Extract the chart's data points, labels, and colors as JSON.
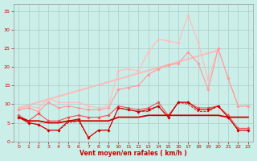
{
  "x": [
    0,
    1,
    2,
    3,
    4,
    5,
    6,
    7,
    8,
    9,
    10,
    11,
    12,
    13,
    14,
    15,
    16,
    17,
    18,
    19,
    20,
    21,
    22,
    23
  ],
  "raff_max": [
    8.5,
    9.5,
    9.0,
    11.5,
    10.5,
    10.5,
    10.5,
    9.5,
    9.0,
    9.5,
    19.0,
    19.5,
    19.0,
    24.0,
    27.5,
    27.0,
    26.5,
    34.0,
    26.5,
    16.5,
    25.0,
    17.0,
    9.5,
    9.5
  ],
  "raff_moy": [
    8.5,
    9.0,
    8.0,
    10.5,
    9.0,
    9.5,
    9.0,
    8.5,
    8.5,
    9.0,
    14.0,
    14.5,
    15.0,
    18.0,
    19.5,
    20.5,
    21.0,
    24.0,
    21.0,
    14.0,
    25.0,
    17.0,
    9.5,
    9.5
  ],
  "trend": [
    9.0,
    9.5,
    10.0,
    10.5,
    11.0,
    11.5,
    12.0,
    12.5,
    13.0,
    13.5,
    14.0,
    15.0,
    16.0,
    17.0,
    18.0,
    19.0,
    20.0,
    21.5,
    22.5,
    23.5,
    24.5,
    17.0,
    9.5,
    9.5
  ],
  "vent_max": [
    7.0,
    5.5,
    7.5,
    5.5,
    5.5,
    6.5,
    7.0,
    6.5,
    6.5,
    7.0,
    9.5,
    9.0,
    8.5,
    9.0,
    10.5,
    7.0,
    10.5,
    10.5,
    9.0,
    9.0,
    9.5,
    7.0,
    3.5,
    3.5
  ],
  "vent_moy": [
    6.5,
    5.0,
    4.5,
    3.0,
    3.0,
    5.5,
    6.0,
    1.0,
    3.0,
    3.0,
    9.0,
    8.5,
    8.0,
    8.5,
    9.5,
    6.5,
    10.5,
    10.5,
    8.5,
    8.5,
    9.5,
    6.5,
    3.0,
    3.0
  ],
  "vent_med": [
    6.5,
    5.5,
    5.5,
    5.0,
    5.0,
    5.5,
    5.5,
    5.5,
    5.5,
    5.5,
    6.5,
    6.5,
    6.5,
    7.0,
    7.0,
    7.0,
    7.0,
    7.0,
    7.0,
    7.0,
    7.0,
    6.5,
    6.5,
    6.5
  ],
  "vent_min": [
    6.5,
    5.0,
    4.5,
    3.0,
    3.0,
    5.0,
    5.5,
    1.0,
    3.0,
    3.0,
    9.0,
    8.5,
    8.0,
    8.0,
    9.5,
    6.5,
    10.5,
    10.0,
    8.0,
    8.0,
    9.5,
    6.5,
    3.0,
    3.0
  ],
  "trend_line": [
    9.0,
    24.5
  ],
  "trend_x": [
    0,
    20
  ],
  "bg_color": "#cceee8",
  "grid_color": "#aacccc",
  "c_dark": "#cc0000",
  "c_mid": "#ee5555",
  "c_light": "#ff9999",
  "c_pink": "#ffbbbb",
  "xlabel": "Vent moyen/en rafales ( km/h )",
  "ylim": [
    0,
    37
  ],
  "xlim": [
    -0.5,
    23.5
  ],
  "yticks": [
    0,
    5,
    10,
    15,
    20,
    25,
    30,
    35
  ],
  "xticks": [
    0,
    1,
    2,
    3,
    4,
    5,
    6,
    7,
    8,
    9,
    10,
    11,
    12,
    13,
    14,
    15,
    16,
    17,
    18,
    19,
    20,
    21,
    22,
    23
  ]
}
